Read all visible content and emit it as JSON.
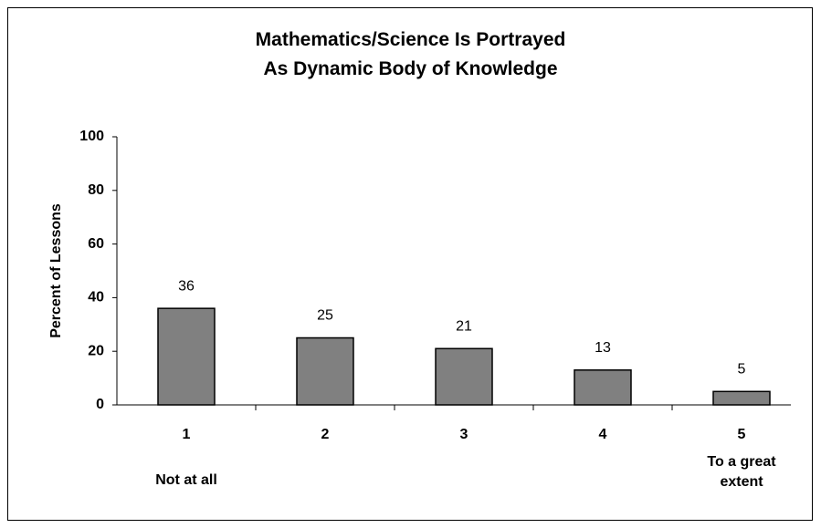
{
  "chart_data": {
    "type": "bar",
    "title": "Mathematics/Science Is Portrayed\nAs Dynamic Body of Knowledge",
    "ylabel": "Percent of Lessons",
    "categories": [
      "1",
      "2",
      "3",
      "4",
      "5"
    ],
    "category_sublabels": [
      "Not at all",
      null,
      null,
      null,
      "To a great extent"
    ],
    "values": [
      36,
      25,
      21,
      13,
      5
    ],
    "color": "#808080",
    "ylim": [
      0,
      100
    ],
    "yticks": [
      0,
      20,
      40,
      60,
      80,
      100
    ],
    "grid": false
  }
}
